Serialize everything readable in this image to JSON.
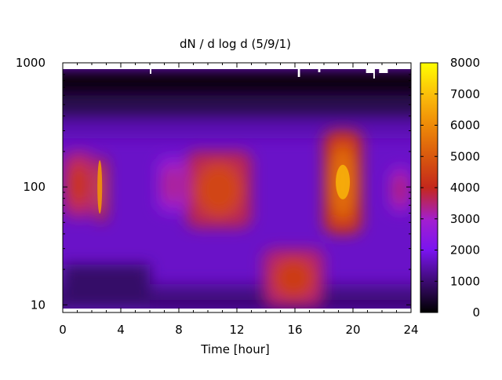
{
  "chart_data": {
    "type": "heatmap",
    "title": "dN / d log d (5/9/1)",
    "xlabel": "Time [hour]",
    "ylabel": "",
    "xlim": [
      0,
      24
    ],
    "ylim": [
      9.3,
      1000
    ],
    "y_scale": "log",
    "x_ticks": [
      0,
      4,
      8,
      12,
      16,
      20,
      24
    ],
    "x_tick_labels": [
      "0",
      "4",
      "8",
      "12",
      "16",
      "20",
      "24"
    ],
    "y_ticks": [
      10,
      100,
      1000
    ],
    "y_tick_labels": [
      "10",
      "100",
      "1000"
    ],
    "colorbar": {
      "range": [
        0,
        8000
      ],
      "ticks": [
        0,
        1000,
        2000,
        3000,
        4000,
        5000,
        6000,
        7000,
        8000
      ],
      "tick_labels": [
        "0",
        "1000",
        "2000",
        "3000",
        "4000",
        "5000",
        "6000",
        "7000",
        "8000"
      ],
      "colormap": "gnuplot pm3d (black-purple-red-orange-yellow)"
    },
    "grid": false,
    "features": [
      {
        "x_range": [
          0,
          2.2
        ],
        "y_range": [
          55,
          200
        ],
        "value": 4300
      },
      {
        "x_range": [
          2.3,
          3.0
        ],
        "y_range": [
          50,
          180
        ],
        "value": 5000
      },
      {
        "x_range": [
          6.5,
          8.5
        ],
        "y_range": [
          60,
          180
        ],
        "value": 3300
      },
      {
        "x_range": [
          8.5,
          13.0
        ],
        "y_range": [
          45,
          200
        ],
        "value": 4600
      },
      {
        "x_range": [
          13.8,
          18.0
        ],
        "y_range": [
          9.5,
          30
        ],
        "value": 4400
      },
      {
        "x_range": [
          18.0,
          20.6
        ],
        "y_range": [
          40,
          300
        ],
        "value": 5400
      },
      {
        "x_range": [
          22.5,
          24.0
        ],
        "y_range": [
          60,
          150
        ],
        "value": 3500
      }
    ]
  }
}
